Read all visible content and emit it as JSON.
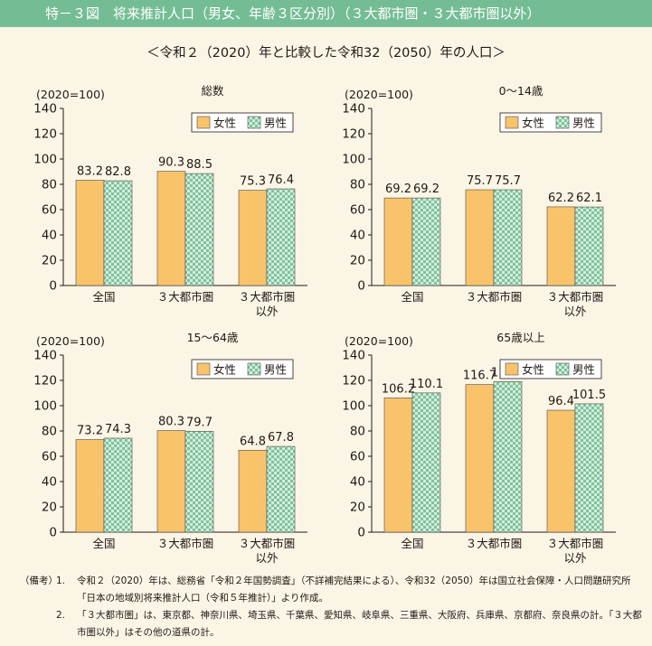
{
  "header": {
    "title": "特－３図　将来推計人口（男女、年齢３区分別）（３大都市圏・３大都市圏以外）"
  },
  "subtitle": "＜令和２（2020）年と比較した令和32（2050）年の人口＞",
  "colors": {
    "female": "#f8c36a",
    "male_base": "#d3ecdd",
    "male_check": "#7fc39c",
    "header": "#74bd94",
    "background": "#fbf5e6"
  },
  "chart_data": [
    {
      "type": "bar",
      "title": "総数",
      "ylabel": "(2020=100)",
      "ylim": [
        0,
        140
      ],
      "yticks": [
        0,
        20,
        40,
        60,
        80,
        100,
        120,
        140
      ],
      "categories": [
        "全国",
        "３大都市圏",
        "３大都市圏\n以外"
      ],
      "series": [
        {
          "name": "女性",
          "values": [
            83.2,
            90.3,
            75.3
          ]
        },
        {
          "name": "男性",
          "values": [
            82.8,
            88.5,
            76.4
          ]
        }
      ],
      "legend_placement": "top-right"
    },
    {
      "type": "bar",
      "title": "0～14歳",
      "ylabel": "(2020=100)",
      "ylim": [
        0,
        140
      ],
      "yticks": [
        0,
        20,
        40,
        60,
        80,
        100,
        120,
        140
      ],
      "categories": [
        "全国",
        "３大都市圏",
        "３大都市圏\n以外"
      ],
      "series": [
        {
          "name": "女性",
          "values": [
            69.2,
            75.7,
            62.2
          ]
        },
        {
          "name": "男性",
          "values": [
            69.2,
            75.7,
            62.1
          ]
        }
      ],
      "legend_placement": "top-right"
    },
    {
      "type": "bar",
      "title": "15～64歳",
      "ylabel": "(2020=100)",
      "ylim": [
        0,
        140
      ],
      "yticks": [
        0,
        20,
        40,
        60,
        80,
        100,
        120,
        140
      ],
      "categories": [
        "全国",
        "３大都市圏",
        "３大都市圏\n以外"
      ],
      "series": [
        {
          "name": "女性",
          "values": [
            73.2,
            80.3,
            64.8
          ]
        },
        {
          "name": "男性",
          "values": [
            74.3,
            79.7,
            67.8
          ]
        }
      ],
      "legend_placement": "top-right"
    },
    {
      "type": "bar",
      "title": "65歳以上",
      "ylabel": "(2020=100)",
      "ylim": [
        0,
        140
      ],
      "yticks": [
        0,
        20,
        40,
        60,
        80,
        100,
        120,
        140
      ],
      "categories": [
        "全国",
        "３大都市圏",
        "３大都市圏\n以外"
      ],
      "series": [
        {
          "name": "女性",
          "values": [
            106.2,
            116.7,
            96.4
          ]
        },
        {
          "name": "男性",
          "values": [
            110.1,
            119.1,
            101.5
          ]
        }
      ],
      "legend_placement": "top-right"
    }
  ],
  "notes": {
    "label": "（備考）",
    "items": [
      {
        "num": "1.",
        "text": "令和２（2020）年は、総務省「令和２年国勢調査」（不詳補完結果による）、令和32（2050）年は国立社会保障・人口問題研究所「日本の地域別将来推計人口（令和５年推計）」より作成。"
      },
      {
        "num": "2.",
        "text": "「３大都市圏」は、東京都、神奈川県、埼玉県、千葉県、愛知県、岐阜県、三重県、大阪府、兵庫県、京都府、奈良県の計。「３大都市圏以外」はその他の道県の計。"
      }
    ]
  }
}
